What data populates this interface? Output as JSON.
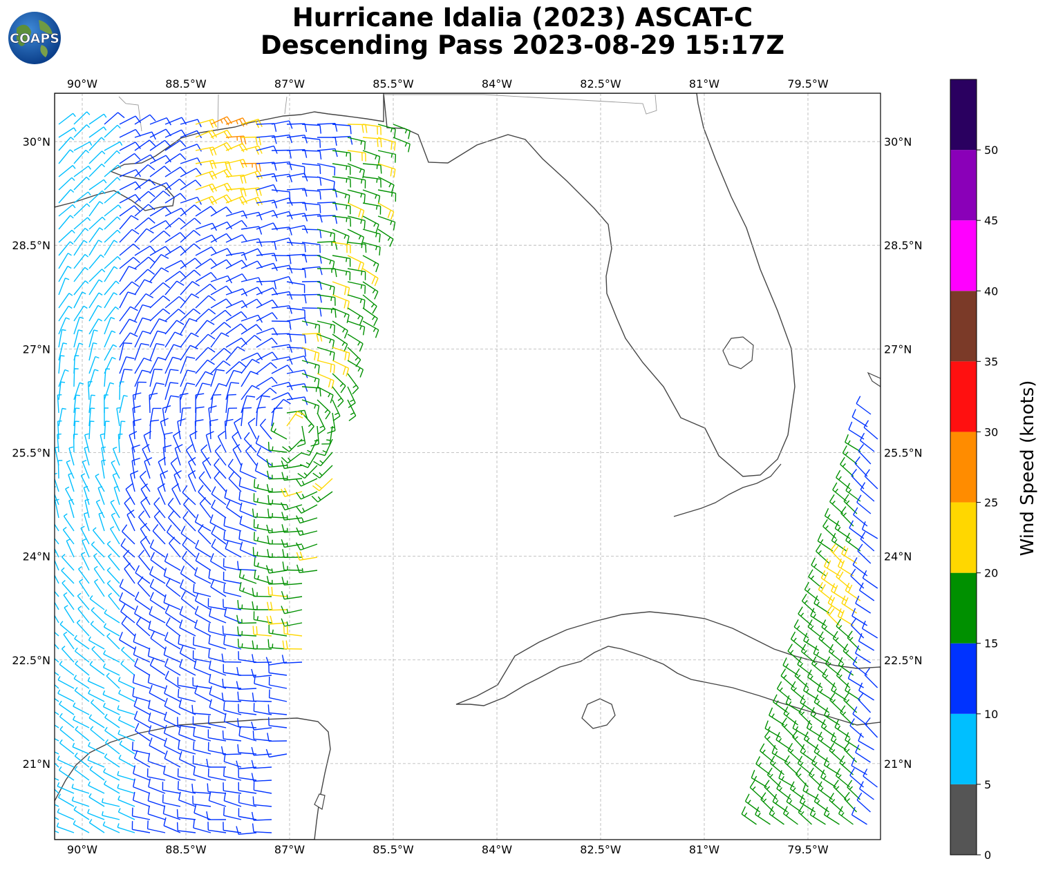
{
  "title": {
    "line1": "Hurricane Idalia (2023) ASCAT-C",
    "line2": "Descending Pass 2023-08-29 15:17Z"
  },
  "logo": {
    "text": "COAPS"
  },
  "map": {
    "lon_range": [
      -90.4,
      -78.45
    ],
    "lat_range": [
      19.9,
      30.7
    ],
    "gridlines": "dashed",
    "x_ticks": [
      "90°W",
      "88.5°W",
      "87°W",
      "85.5°W",
      "84°W",
      "82.5°W",
      "81°W",
      "79.5°W"
    ],
    "x_tick_values": [
      -90,
      -88.5,
      -87,
      -85.5,
      -84,
      -82.5,
      -81,
      -79.5
    ],
    "y_ticks": [
      "30°N",
      "28.5°N",
      "27°N",
      "25.5°N",
      "24°N",
      "22.5°N",
      "21°N"
    ],
    "y_tick_values": [
      30,
      28.5,
      27,
      25.5,
      24,
      22.5,
      21
    ]
  },
  "colorbar": {
    "label": "Wind Speed (knots)",
    "ticks": [
      "0",
      "5",
      "10",
      "15",
      "20",
      "25",
      "30",
      "35",
      "40",
      "45",
      "50"
    ],
    "bins": [
      {
        "min": 0,
        "max": 5,
        "color": "#555555"
      },
      {
        "min": 5,
        "max": 10,
        "color": "#00bfff"
      },
      {
        "min": 10,
        "max": 15,
        "color": "#0033ff"
      },
      {
        "min": 15,
        "max": 20,
        "color": "#009000"
      },
      {
        "min": 20,
        "max": 25,
        "color": "#ffd700"
      },
      {
        "min": 25,
        "max": 30,
        "color": "#ff8c00"
      },
      {
        "min": 30,
        "max": 35,
        "color": "#ff1010"
      },
      {
        "min": 35,
        "max": 40,
        "color": "#7b3a28"
      },
      {
        "min": 40,
        "max": 45,
        "color": "#ff00ff"
      },
      {
        "min": 45,
        "max": 50,
        "color": "#8a00b8"
      },
      {
        "min": 50,
        "max": 55,
        "color": "#2a0060"
      }
    ]
  },
  "colors": {
    "coast": "#444444",
    "grid": "#b0b0b0",
    "land_shade": "#f3f3f3"
  }
}
